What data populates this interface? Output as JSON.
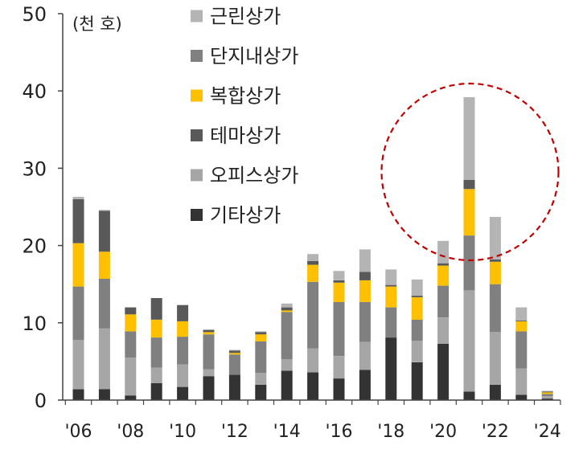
{
  "chart_data": {
    "type": "bar",
    "stacked": true,
    "unit_label": "(천 호)",
    "ylim": [
      0,
      50
    ],
    "yticks": [
      0,
      10,
      20,
      30,
      40,
      50
    ],
    "categories": [
      "2006",
      "2007",
      "2008",
      "2009",
      "2010",
      "2011",
      "2012",
      "2013",
      "2014",
      "2015",
      "2016",
      "2017",
      "2018",
      "2019",
      "2020",
      "2021",
      "2022",
      "2023",
      "2024"
    ],
    "xtick_labels": [
      "'06",
      "'08",
      "'10",
      "'12",
      "'14",
      "'16",
      "'18",
      "'20",
      "'22",
      "'24"
    ],
    "xtick_years": [
      "2006",
      "2008",
      "2010",
      "2012",
      "2014",
      "2016",
      "2018",
      "2020",
      "2022",
      "2024"
    ],
    "series": [
      {
        "name": "기타상가",
        "color": "#333333",
        "values": [
          1.4,
          1.4,
          0.6,
          2.2,
          1.7,
          3.1,
          3.3,
          2.0,
          3.8,
          3.6,
          2.8,
          3.9,
          8.1,
          4.9,
          7.3,
          1.1,
          2.0,
          0.7,
          0.2
        ]
      },
      {
        "name": "오피스상가",
        "color": "#a6a6a6",
        "values": [
          6.4,
          7.9,
          4.9,
          2.0,
          2.9,
          0.9,
          0,
          1.5,
          1.5,
          3.1,
          2.9,
          3.6,
          0,
          2.8,
          3.4,
          13.1,
          6.8,
          3.4,
          0.3
        ]
      },
      {
        "name": "단지내상가",
        "color": "#808080",
        "values": [
          6.9,
          6.4,
          3.4,
          3.9,
          3.6,
          4.5,
          2.6,
          4.1,
          6.1,
          8.6,
          7.0,
          5.2,
          3.9,
          2.7,
          4.1,
          7.1,
          6.2,
          4.8,
          0.3
        ]
      },
      {
        "name": "복합상가",
        "color": "#ffc000",
        "values": [
          5.6,
          3.5,
          2.2,
          2.3,
          2.0,
          0.3,
          0.2,
          0.9,
          0.2,
          2.2,
          2.5,
          2.8,
          2.7,
          2.9,
          2.6,
          6.0,
          2.9,
          1.3,
          0.2
        ]
      },
      {
        "name": "테마상가",
        "color": "#595959",
        "values": [
          5.7,
          5.3,
          0.9,
          2.8,
          2.1,
          0.3,
          0.3,
          0.3,
          0.4,
          0.5,
          0.3,
          1.1,
          0.2,
          0.2,
          0.3,
          1.2,
          0.3,
          0.1,
          0.1
        ]
      },
      {
        "name": "근린상가",
        "color": "#b4b4b4",
        "values": [
          0.3,
          0.1,
          0,
          0,
          0,
          0,
          0.1,
          0.1,
          0.5,
          0.9,
          1.2,
          2.9,
          2.0,
          2.1,
          2.9,
          10.7,
          5.5,
          1.7,
          0.1
        ]
      }
    ],
    "legend": [
      {
        "name": "근린상가",
        "color": "#b4b4b4"
      },
      {
        "name": "단지내상가",
        "color": "#808080"
      },
      {
        "name": "복합상가",
        "color": "#ffc000"
      },
      {
        "name": "테마상가",
        "color": "#595959"
      },
      {
        "name": "오피스상가",
        "color": "#a6a6a6"
      },
      {
        "name": "기타상가",
        "color": "#333333"
      }
    ],
    "legend_position": "top-center",
    "highlight": {
      "category": "2021",
      "style": "dashed circle",
      "color": "#c00000"
    },
    "grid": false
  }
}
